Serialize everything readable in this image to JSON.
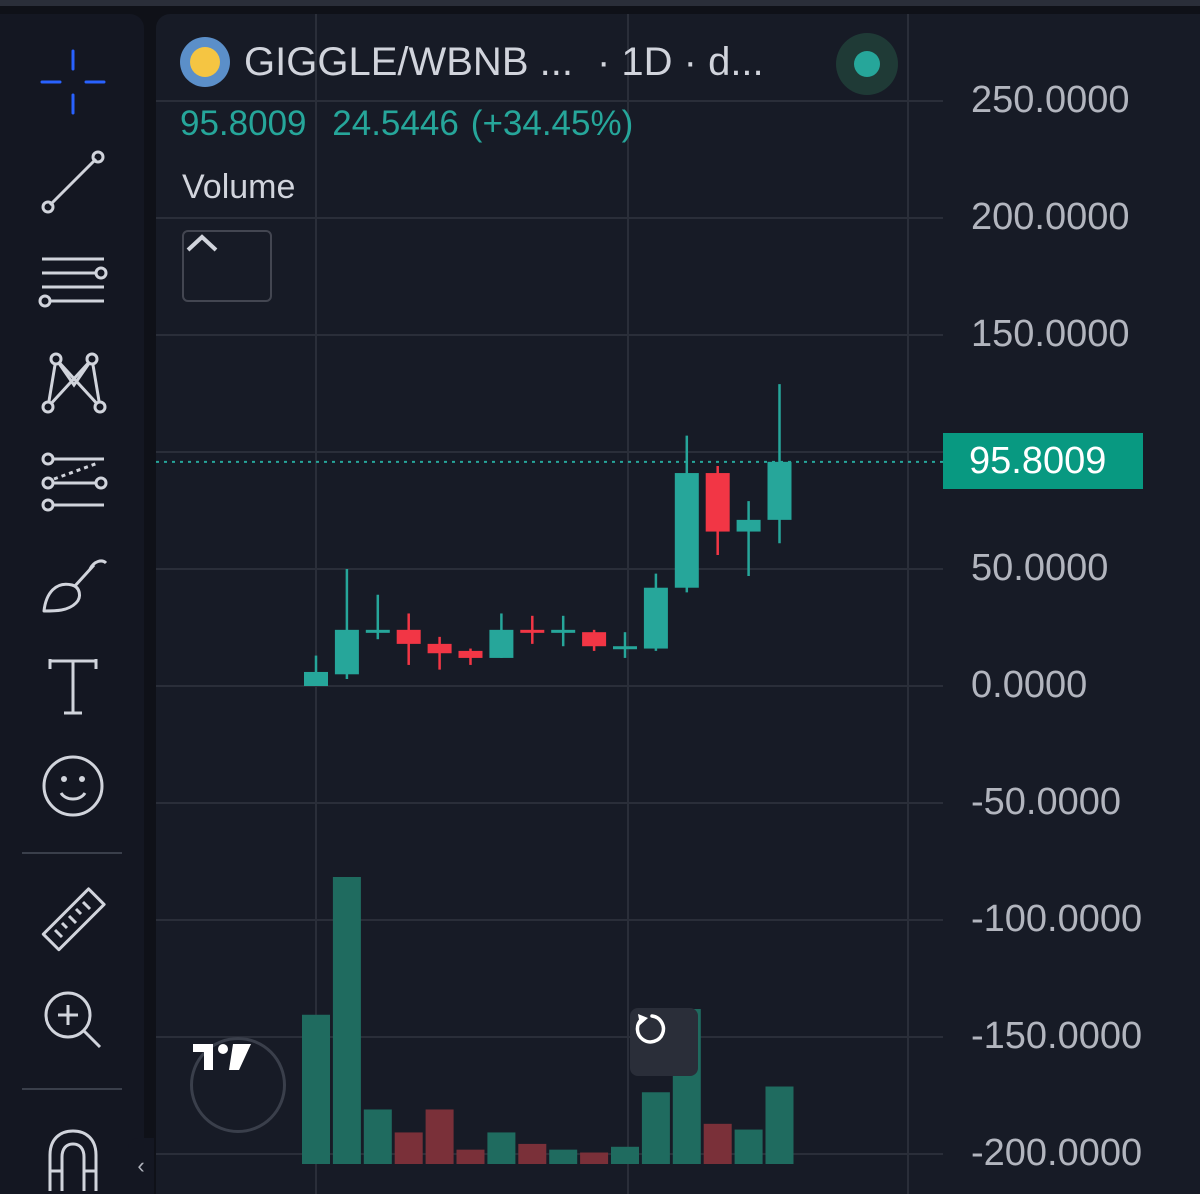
{
  "header": {
    "pair": "GIGGLE/WBNB ...",
    "interval": "· 1D · d...",
    "coin_icon": "giggle-coin-icon",
    "status": "market-open-dot"
  },
  "legend": {
    "close": "95.8009",
    "change": "24.5446",
    "change_pct": "(+34.45%)"
  },
  "volume_label": "Volume",
  "price_tag": "95.8009",
  "colors": {
    "up": "#26a69a",
    "down": "#f23645",
    "up_volume": "#1f6b5f",
    "down_volume": "#7a3039",
    "tag": "#089981"
  },
  "toolbar": [
    {
      "name": "crosshair-icon"
    },
    {
      "name": "trend-line-icon"
    },
    {
      "name": "horizontal-lines-icon"
    },
    {
      "name": "pattern-icon"
    },
    {
      "name": "forecast-icon"
    },
    {
      "name": "brush-icon"
    },
    {
      "name": "text-tool-icon"
    },
    {
      "name": "emoji-icon"
    },
    {
      "name": "ruler-icon"
    },
    {
      "name": "zoom-in-icon"
    },
    {
      "name": "magnet-icon"
    }
  ],
  "chart_data": {
    "type": "candlestick",
    "y_ticks": [
      "250.0000",
      "200.0000",
      "150.0000",
      "100.0000",
      "50.0000",
      "0.0000",
      "-50.0000",
      "-100.0000",
      "-150.0000",
      "-200.0000"
    ],
    "ylim": [
      -200,
      250
    ],
    "last_price": 95.8009,
    "candles": [
      {
        "o": 0,
        "h": 13,
        "l": 0,
        "c": 6
      },
      {
        "o": 5,
        "h": 50,
        "l": 3,
        "c": 24
      },
      {
        "o": 24,
        "h": 39,
        "l": 20,
        "c": 24
      },
      {
        "o": 24,
        "h": 31,
        "l": 9,
        "c": 18
      },
      {
        "o": 18,
        "h": 21,
        "l": 7,
        "c": 14
      },
      {
        "o": 15,
        "h": 16,
        "l": 9,
        "c": 12
      },
      {
        "o": 12,
        "h": 31,
        "l": 12,
        "c": 24
      },
      {
        "o": 24,
        "h": 30,
        "l": 18,
        "c": 23
      },
      {
        "o": 24,
        "h": 30,
        "l": 17,
        "c": 24
      },
      {
        "o": 23,
        "h": 24,
        "l": 15,
        "c": 17
      },
      {
        "o": 17,
        "h": 23,
        "l": 12,
        "c": 17
      },
      {
        "o": 16,
        "h": 48,
        "l": 15,
        "c": 42
      },
      {
        "o": 42,
        "h": 107,
        "l": 40,
        "c": 91
      },
      {
        "o": 91,
        "h": 94,
        "l": 56,
        "c": 66
      },
      {
        "o": 66,
        "h": 79,
        "l": 47,
        "c": 71
      },
      {
        "o": 71,
        "h": 129,
        "l": 61,
        "c": 95.8
      }
    ],
    "volumes": [
      0.52,
      1.0,
      0.19,
      0.11,
      0.19,
      0.05,
      0.11,
      0.07,
      0.05,
      0.04,
      0.06,
      0.25,
      0.54,
      0.14,
      0.12,
      0.27
    ]
  }
}
